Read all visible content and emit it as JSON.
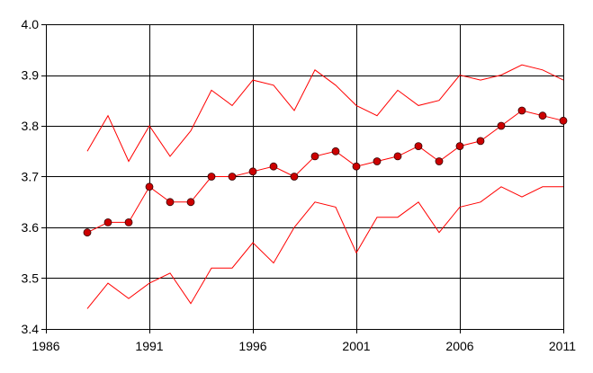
{
  "chart_data": {
    "type": "line",
    "title": "",
    "xlabel": "",
    "ylabel": "",
    "xlim": [
      1986,
      2011
    ],
    "ylim": [
      3.4,
      4.0
    ],
    "x_ticks": [
      1986,
      1991,
      1996,
      2001,
      2006,
      2011
    ],
    "x_tick_labels": [
      "1986",
      "1991",
      "1996",
      "2001",
      "2006",
      "2011"
    ],
    "y_ticks": [
      3.4,
      3.5,
      3.6,
      3.7,
      3.8,
      3.9,
      4.0
    ],
    "y_tick_labels": [
      "3.4",
      "3.5",
      "3.6",
      "3.7",
      "3.8",
      "3.9",
      "4.0"
    ],
    "grid": true,
    "legend": "none",
    "x": [
      1988,
      1989,
      1990,
      1991,
      1992,
      1993,
      1994,
      1995,
      1996,
      1997,
      1998,
      1999,
      2000,
      2001,
      2002,
      2003,
      2004,
      2005,
      2006,
      2007,
      2008,
      2009,
      2010,
      2011
    ],
    "series": [
      {
        "role": "upper",
        "markers": false,
        "color": "#ff0000",
        "values": [
          3.75,
          3.82,
          3.73,
          3.8,
          3.74,
          3.79,
          3.87,
          3.84,
          3.89,
          3.88,
          3.83,
          3.91,
          3.88,
          3.84,
          3.82,
          3.87,
          3.84,
          3.85,
          3.9,
          3.89,
          3.9,
          3.92,
          3.91,
          3.89
        ]
      },
      {
        "role": "middle",
        "markers": true,
        "color": "#ff0000",
        "marker_color": "#cc0000",
        "values": [
          3.59,
          3.61,
          3.61,
          3.68,
          3.65,
          3.65,
          3.7,
          3.7,
          3.71,
          3.72,
          3.7,
          3.74,
          3.75,
          3.72,
          3.73,
          3.74,
          3.76,
          3.73,
          3.76,
          3.77,
          3.8,
          3.83,
          3.82,
          3.81
        ]
      },
      {
        "role": "lower",
        "markers": false,
        "color": "#ff0000",
        "values": [
          3.44,
          3.49,
          3.46,
          3.49,
          3.51,
          3.45,
          3.52,
          3.52,
          3.57,
          3.53,
          3.6,
          3.65,
          3.64,
          3.55,
          3.62,
          3.62,
          3.65,
          3.59,
          3.64,
          3.65,
          3.68,
          3.66,
          3.68,
          3.68
        ]
      }
    ]
  }
}
